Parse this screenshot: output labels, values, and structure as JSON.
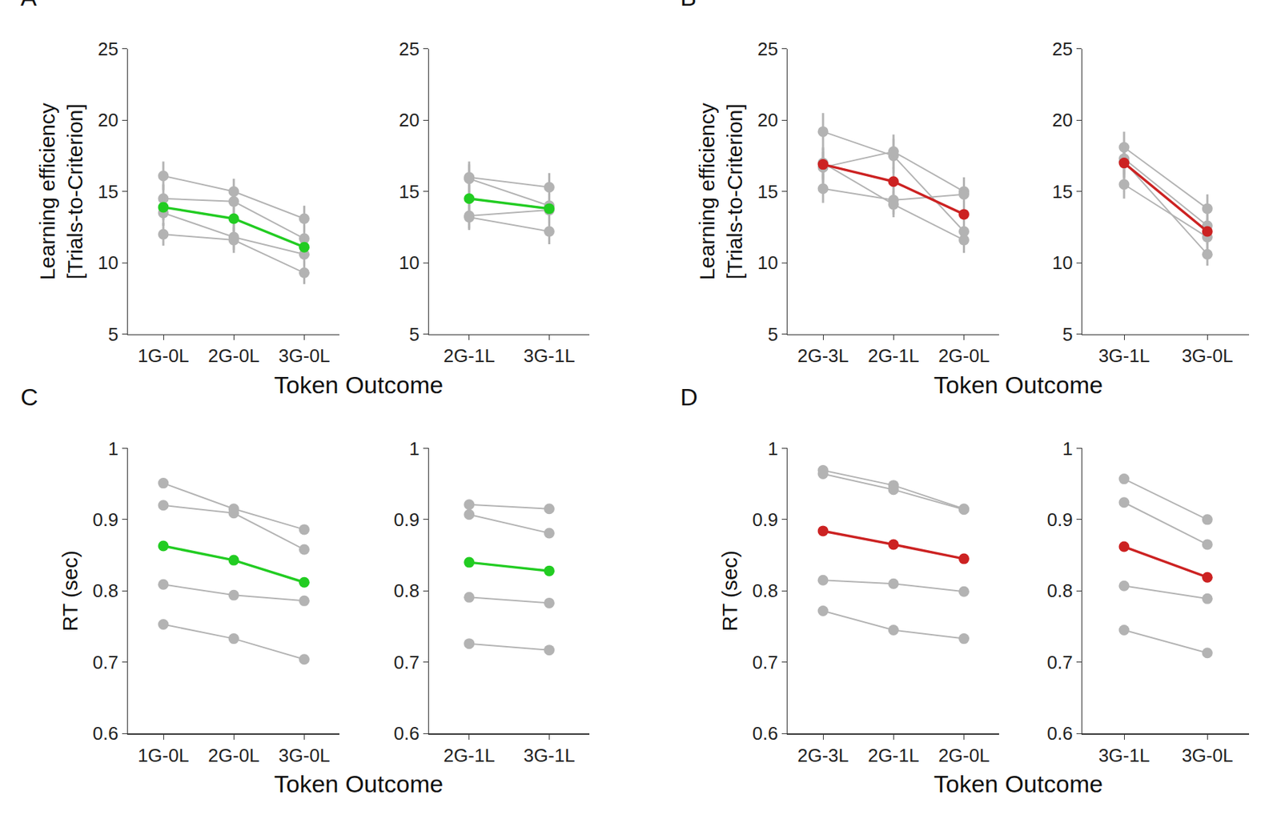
{
  "chart_data": [
    {
      "type": "line",
      "panel_label": "A",
      "y_label": "Learning efficiency\n[Trials-to-Criterion]",
      "x_label": "Token Outcome",
      "categories": [
        "1G-0L",
        "2G-0L",
        "3G-0L"
      ],
      "ylim": [
        5,
        25
      ],
      "yticks": [
        5,
        10,
        15,
        20,
        25
      ],
      "series": [
        {
          "color": "#b3b3b3",
          "marker": "circle",
          "values": [
            16.1,
            15.0,
            13.1
          ],
          "errors": [
            1.0,
            0.9,
            0.9
          ]
        },
        {
          "color": "#b3b3b3",
          "marker": "circle",
          "values": [
            14.5,
            14.3,
            11.7
          ],
          "errors": [
            1.0,
            0.9,
            0.9
          ]
        },
        {
          "color": "#b3b3b3",
          "marker": "circle",
          "values": [
            13.5,
            11.8,
            10.6
          ],
          "errors": [
            0.9,
            0.9,
            0.8
          ]
        },
        {
          "color": "#b3b3b3",
          "marker": "circle",
          "values": [
            12.0,
            11.6,
            9.3
          ],
          "errors": [
            0.8,
            0.9,
            0.8
          ]
        },
        {
          "color": "#22cc22",
          "marker": "circle",
          "values": [
            13.9,
            13.1,
            11.1
          ],
          "errors": [
            0.9,
            0.9,
            0.9
          ]
        }
      ]
    },
    {
      "type": "line",
      "categories": [
        "2G-1L",
        "3G-1L"
      ],
      "ylim": [
        5,
        25
      ],
      "yticks": [
        5,
        10,
        15,
        20,
        25
      ],
      "series": [
        {
          "color": "#b3b3b3",
          "marker": "circle",
          "values": [
            16.0,
            15.3
          ],
          "errors": [
            1.1,
            1.0
          ]
        },
        {
          "color": "#b3b3b3",
          "marker": "circle",
          "values": [
            15.9,
            14.0
          ],
          "errors": [
            1.0,
            1.0
          ]
        },
        {
          "color": "#b3b3b3",
          "marker": "circle",
          "values": [
            13.3,
            13.7
          ],
          "errors": [
            0.9,
            0.9
          ]
        },
        {
          "color": "#b3b3b3",
          "marker": "circle",
          "values": [
            13.2,
            12.2
          ],
          "errors": [
            0.9,
            0.9
          ]
        },
        {
          "color": "#22cc22",
          "marker": "circle",
          "values": [
            14.5,
            13.8
          ],
          "errors": [
            1.0,
            1.0
          ]
        }
      ]
    },
    {
      "type": "line",
      "panel_label": "B",
      "y_label": "Learning efficiency\n[Trials-to-Criterion]",
      "x_label": "Token Outcome",
      "categories": [
        "2G-3L",
        "2G-1L",
        "2G-0L"
      ],
      "ylim": [
        5,
        25
      ],
      "yticks": [
        5,
        10,
        15,
        20,
        25
      ],
      "series": [
        {
          "color": "#b3b3b3",
          "marker": "circle",
          "values": [
            19.2,
            17.5,
            12.2
          ],
          "errors": [
            1.3,
            1.2,
            0.9
          ]
        },
        {
          "color": "#b3b3b3",
          "marker": "circle",
          "values": [
            16.7,
            17.8,
            15.0
          ],
          "errors": [
            1.1,
            1.2,
            1.0
          ]
        },
        {
          "color": "#b3b3b3",
          "marker": "circle",
          "values": [
            15.2,
            14.4,
            14.8
          ],
          "errors": [
            1.0,
            1.0,
            1.0
          ]
        },
        {
          "color": "#b3b3b3",
          "marker": "circle",
          "values": [
            17.0,
            14.1,
            11.6
          ],
          "errors": [
            1.1,
            0.9,
            0.9
          ]
        },
        {
          "color": "#cc2222",
          "marker": "circle",
          "values": [
            16.9,
            15.7,
            13.4
          ],
          "errors": [
            1.1,
            1.0,
            0.9
          ]
        }
      ]
    },
    {
      "type": "line",
      "categories": [
        "3G-1L",
        "3G-0L"
      ],
      "ylim": [
        5,
        25
      ],
      "yticks": [
        5,
        10,
        15,
        20,
        25
      ],
      "series": [
        {
          "color": "#b3b3b3",
          "marker": "circle",
          "values": [
            18.1,
            13.8
          ],
          "errors": [
            1.1,
            1.0
          ]
        },
        {
          "color": "#b3b3b3",
          "marker": "circle",
          "values": [
            17.3,
            12.6
          ],
          "errors": [
            1.1,
            0.9
          ]
        },
        {
          "color": "#b3b3b3",
          "marker": "circle",
          "values": [
            15.5,
            11.8
          ],
          "errors": [
            1.0,
            0.9
          ]
        },
        {
          "color": "#b3b3b3",
          "marker": "circle",
          "values": [
            17.1,
            10.6
          ],
          "errors": [
            1.1,
            0.8
          ]
        },
        {
          "color": "#cc2222",
          "marker": "circle",
          "values": [
            17.0,
            12.2
          ],
          "errors": [
            1.1,
            0.9
          ]
        }
      ]
    },
    {
      "type": "line",
      "panel_label": "C",
      "y_label": "RT (sec)",
      "x_label": "Token Outcome",
      "categories": [
        "1G-0L",
        "2G-0L",
        "3G-0L"
      ],
      "ylim": [
        0.6,
        1
      ],
      "yticks": [
        0.6,
        0.7,
        0.8,
        0.9,
        1
      ],
      "series": [
        {
          "color": "#b3b3b3",
          "marker": "circle",
          "values": [
            0.951,
            0.915,
            0.886
          ]
        },
        {
          "color": "#b3b3b3",
          "marker": "circle",
          "values": [
            0.92,
            0.909,
            0.858
          ]
        },
        {
          "color": "#b3b3b3",
          "marker": "circle",
          "values": [
            0.809,
            0.794,
            0.786
          ]
        },
        {
          "color": "#b3b3b3",
          "marker": "circle",
          "values": [
            0.753,
            0.733,
            0.704
          ]
        },
        {
          "color": "#22cc22",
          "marker": "circle",
          "values": [
            0.863,
            0.843,
            0.812
          ]
        }
      ]
    },
    {
      "type": "line",
      "categories": [
        "2G-1L",
        "3G-1L"
      ],
      "ylim": [
        0.6,
        1
      ],
      "yticks": [
        0.6,
        0.7,
        0.8,
        0.9,
        1
      ],
      "series": [
        {
          "color": "#b3b3b3",
          "marker": "circle",
          "values": [
            0.921,
            0.915
          ]
        },
        {
          "color": "#b3b3b3",
          "marker": "circle",
          "values": [
            0.907,
            0.881
          ]
        },
        {
          "color": "#b3b3b3",
          "marker": "circle",
          "values": [
            0.791,
            0.783
          ]
        },
        {
          "color": "#b3b3b3",
          "marker": "circle",
          "values": [
            0.726,
            0.717
          ]
        },
        {
          "color": "#22cc22",
          "marker": "circle",
          "values": [
            0.84,
            0.828
          ]
        }
      ]
    },
    {
      "type": "line",
      "panel_label": "D",
      "y_label": "RT (sec)",
      "x_label": "Token Outcome",
      "categories": [
        "2G-3L",
        "2G-1L",
        "2G-0L"
      ],
      "ylim": [
        0.6,
        1
      ],
      "yticks": [
        0.6,
        0.7,
        0.8,
        0.9,
        1
      ],
      "series": [
        {
          "color": "#b3b3b3",
          "marker": "circle",
          "values": [
            0.969,
            0.948,
            0.915
          ]
        },
        {
          "color": "#b3b3b3",
          "marker": "circle",
          "values": [
            0.964,
            0.942,
            0.914
          ]
        },
        {
          "color": "#b3b3b3",
          "marker": "circle",
          "values": [
            0.815,
            0.81,
            0.799
          ]
        },
        {
          "color": "#b3b3b3",
          "marker": "circle",
          "values": [
            0.772,
            0.745,
            0.733
          ]
        },
        {
          "color": "#cc2222",
          "marker": "circle",
          "values": [
            0.884,
            0.865,
            0.845
          ]
        }
      ]
    },
    {
      "type": "line",
      "categories": [
        "3G-1L",
        "3G-0L"
      ],
      "ylim": [
        0.6,
        1
      ],
      "yticks": [
        0.6,
        0.7,
        0.8,
        0.9,
        1
      ],
      "series": [
        {
          "color": "#b3b3b3",
          "marker": "circle",
          "values": [
            0.957,
            0.9
          ]
        },
        {
          "color": "#b3b3b3",
          "marker": "circle",
          "values": [
            0.924,
            0.865
          ]
        },
        {
          "color": "#b3b3b3",
          "marker": "circle",
          "values": [
            0.807,
            0.789
          ]
        },
        {
          "color": "#b3b3b3",
          "marker": "circle",
          "values": [
            0.745,
            0.713
          ]
        },
        {
          "color": "#cc2222",
          "marker": "circle",
          "values": [
            0.862,
            0.819
          ]
        }
      ]
    }
  ]
}
